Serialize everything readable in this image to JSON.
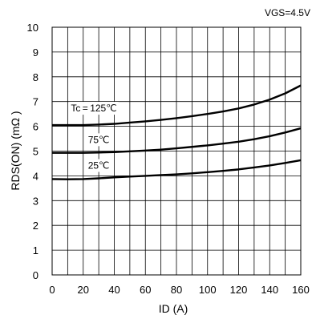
{
  "chart_data": {
    "type": "line",
    "condition": "VGS=4.5V",
    "xlabel": "ID (A)",
    "ylabel": "RDS(ON) (mΩ )",
    "xlim": [
      0,
      160
    ],
    "ylim": [
      0,
      10
    ],
    "xticks": [
      "0",
      "20",
      "40",
      "60",
      "80",
      "100",
      "120",
      "140",
      "160"
    ],
    "yticks": [
      "0",
      "1",
      "2",
      "3",
      "4",
      "5",
      "6",
      "7",
      "8",
      "9",
      "10"
    ],
    "grid": true,
    "series": [
      {
        "name": "Tc = 125℃",
        "x": [
          0,
          10,
          20,
          30,
          40,
          50,
          60,
          70,
          80,
          90,
          100,
          110,
          120,
          130,
          140,
          150,
          160
        ],
        "y": [
          6.05,
          6.05,
          6.05,
          6.07,
          6.1,
          6.15,
          6.2,
          6.26,
          6.33,
          6.41,
          6.5,
          6.6,
          6.72,
          6.88,
          7.08,
          7.33,
          7.65
        ]
      },
      {
        "name": "75℃",
        "x": [
          0,
          10,
          20,
          30,
          40,
          50,
          60,
          70,
          80,
          90,
          100,
          110,
          120,
          130,
          140,
          150,
          160
        ],
        "y": [
          4.93,
          4.93,
          4.93,
          4.94,
          4.96,
          4.99,
          5.02,
          5.06,
          5.11,
          5.17,
          5.23,
          5.3,
          5.38,
          5.48,
          5.6,
          5.75,
          5.92
        ]
      },
      {
        "name": "25℃",
        "x": [
          0,
          10,
          20,
          30,
          40,
          50,
          60,
          70,
          80,
          90,
          100,
          110,
          120,
          130,
          140,
          150,
          160
        ],
        "y": [
          3.87,
          3.86,
          3.87,
          3.9,
          3.94,
          3.97,
          4.0,
          4.03,
          4.06,
          4.1,
          4.15,
          4.2,
          4.26,
          4.34,
          4.42,
          4.52,
          4.63
        ]
      }
    ]
  }
}
